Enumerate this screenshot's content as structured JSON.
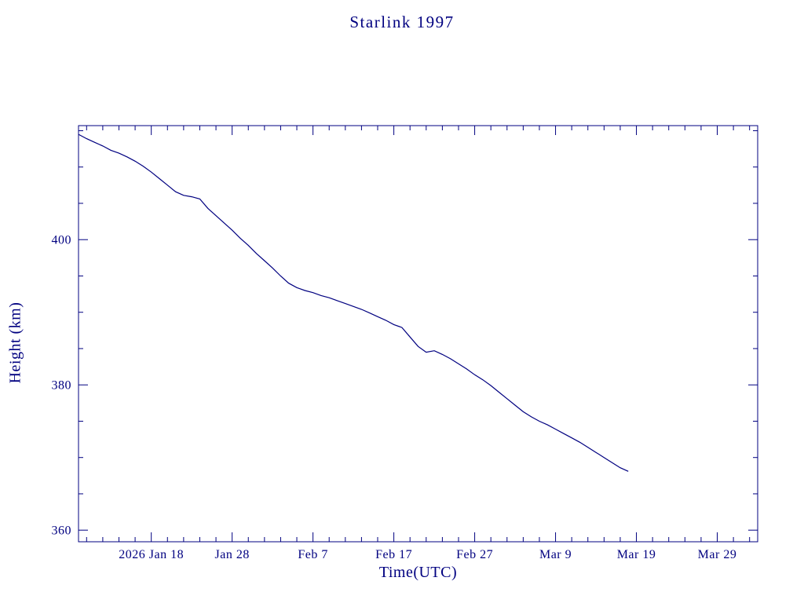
{
  "accent_color": "#000080",
  "chart_data": {
    "type": "line",
    "title": "Starlink 1997",
    "xlabel": "Time(UTC)",
    "ylabel": "Height (km)",
    "line_color": "#000080",
    "grid": false,
    "legend": "none",
    "x_domain": [
      "2026-01-09",
      "2026-04-03"
    ],
    "ylim": [
      358.4,
      415.7
    ],
    "y_major_ticks": [
      360,
      380,
      400
    ],
    "y_minor_step": 5,
    "x_minor_step_days": 2,
    "x_major_ticks": [
      {
        "date": "2026-01-18",
        "label": "2026 Jan 18"
      },
      {
        "date": "2026-01-28",
        "label": "Jan 28"
      },
      {
        "date": "2026-02-07",
        "label": "Feb 7"
      },
      {
        "date": "2026-02-17",
        "label": "Feb 17"
      },
      {
        "date": "2026-02-27",
        "label": "Feb 27"
      },
      {
        "date": "2026-03-09",
        "label": "Mar 9"
      },
      {
        "date": "2026-03-19",
        "label": "Mar 19"
      },
      {
        "date": "2026-03-29",
        "label": "Mar 29"
      }
    ],
    "series": [
      {
        "name": "height",
        "points": [
          [
            "2026-01-09",
            414.5
          ],
          [
            "2026-01-10",
            413.9
          ],
          [
            "2026-01-11",
            413.4
          ],
          [
            "2026-01-12",
            412.9
          ],
          [
            "2026-01-13",
            412.3
          ],
          [
            "2026-01-14",
            411.9
          ],
          [
            "2026-01-15",
            411.4
          ],
          [
            "2026-01-16",
            410.8
          ],
          [
            "2026-01-17",
            410.1
          ],
          [
            "2026-01-18",
            409.3
          ],
          [
            "2026-01-19",
            408.4
          ],
          [
            "2026-01-20",
            407.5
          ],
          [
            "2026-01-21",
            406.6
          ],
          [
            "2026-01-22",
            406.1
          ],
          [
            "2026-01-23",
            405.9
          ],
          [
            "2026-01-24",
            405.6
          ],
          [
            "2026-01-25",
            404.3
          ],
          [
            "2026-01-26",
            403.3
          ],
          [
            "2026-01-27",
            402.3
          ],
          [
            "2026-01-28",
            401.3
          ],
          [
            "2026-01-29",
            400.2
          ],
          [
            "2026-01-30",
            399.2
          ],
          [
            "2026-01-31",
            398.1
          ],
          [
            "2026-02-01",
            397.1
          ],
          [
            "2026-02-02",
            396.1
          ],
          [
            "2026-02-03",
            395.0
          ],
          [
            "2026-02-04",
            394.0
          ],
          [
            "2026-02-05",
            393.4
          ],
          [
            "2026-02-06",
            393.0
          ],
          [
            "2026-02-07",
            392.7
          ],
          [
            "2026-02-08",
            392.3
          ],
          [
            "2026-02-09",
            392.0
          ],
          [
            "2026-02-10",
            391.6
          ],
          [
            "2026-02-11",
            391.2
          ],
          [
            "2026-02-12",
            390.8
          ],
          [
            "2026-02-13",
            390.4
          ],
          [
            "2026-02-14",
            389.9
          ],
          [
            "2026-02-15",
            389.4
          ],
          [
            "2026-02-16",
            388.9
          ],
          [
            "2026-02-17",
            388.3
          ],
          [
            "2026-02-18",
            387.9
          ],
          [
            "2026-02-19",
            386.6
          ],
          [
            "2026-02-20",
            385.3
          ],
          [
            "2026-02-21",
            384.5
          ],
          [
            "2026-02-22",
            384.7
          ],
          [
            "2026-02-23",
            384.2
          ],
          [
            "2026-02-24",
            383.6
          ],
          [
            "2026-02-25",
            382.9
          ],
          [
            "2026-02-26",
            382.2
          ],
          [
            "2026-02-27",
            381.4
          ],
          [
            "2026-02-28",
            380.7
          ],
          [
            "2026-03-01",
            379.9
          ],
          [
            "2026-03-02",
            379.0
          ],
          [
            "2026-03-03",
            378.1
          ],
          [
            "2026-03-04",
            377.2
          ],
          [
            "2026-03-05",
            376.3
          ],
          [
            "2026-03-06",
            375.6
          ],
          [
            "2026-03-07",
            375.0
          ],
          [
            "2026-03-08",
            374.5
          ],
          [
            "2026-03-09",
            373.9
          ],
          [
            "2026-03-10",
            373.3
          ],
          [
            "2026-03-11",
            372.7
          ],
          [
            "2026-03-12",
            372.1
          ],
          [
            "2026-03-13",
            371.4
          ],
          [
            "2026-03-14",
            370.7
          ],
          [
            "2026-03-15",
            370.0
          ],
          [
            "2026-03-16",
            369.3
          ],
          [
            "2026-03-17",
            368.6
          ],
          [
            "2026-03-18",
            368.1
          ]
        ]
      }
    ]
  }
}
